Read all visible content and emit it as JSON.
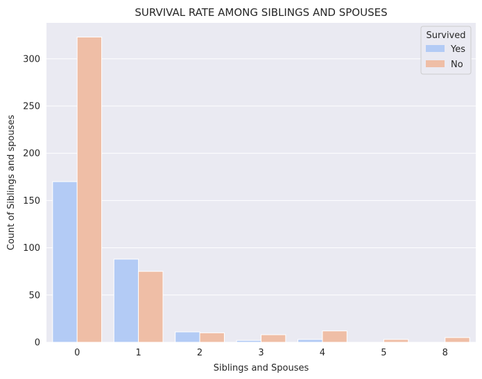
{
  "chart_data": {
    "type": "bar",
    "title": "SURVIVAL RATE AMONG SIBLINGS AND SPOUSES",
    "xlabel": "Siblings and Spouses",
    "ylabel": "Count of Siblings and spouses",
    "categories": [
      "0",
      "1",
      "2",
      "3",
      "4",
      "5",
      "8"
    ],
    "series": [
      {
        "name": "Yes",
        "values": [
          170,
          88,
          11,
          2,
          3,
          0,
          0
        ],
        "color": "#b3cbf5"
      },
      {
        "name": "No",
        "values": [
          323,
          75,
          10,
          8,
          12,
          3,
          5
        ],
        "color": "#efbea6"
      }
    ],
    "ylim": [
      0,
      338
    ],
    "yticks": [
      0,
      50,
      100,
      150,
      200,
      250,
      300
    ],
    "grid": true,
    "legend": {
      "title": "Survived",
      "placement": "top-right"
    },
    "colors": {
      "background": "#eaeaf2",
      "grid": "#ffffff"
    }
  }
}
